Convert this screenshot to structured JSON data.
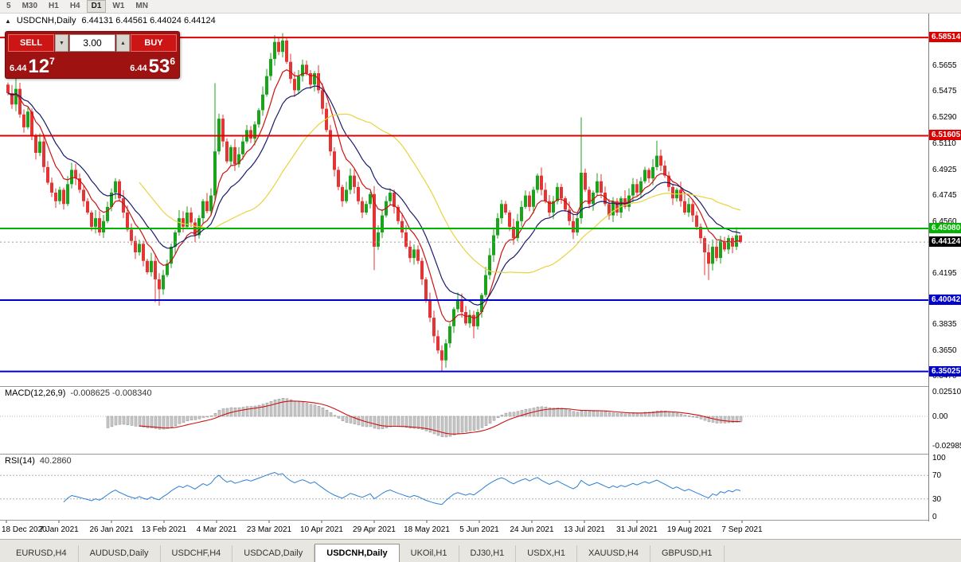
{
  "toolbar": {
    "periods": [
      "5",
      "M30",
      "H1",
      "H4",
      "D1",
      "W1",
      "MN"
    ],
    "active": "D1"
  },
  "header": {
    "collapse_glyph": "▲",
    "symbol": "USDCNH,Daily",
    "ohlc": "6.44131 6.44561 6.44024 6.44124"
  },
  "one_click": {
    "sell_label": "SELL",
    "buy_label": "BUY",
    "volume": "3.00",
    "spin_down_glyph": "▼",
    "spin_up_glyph": "▲",
    "sell_base": "6.44",
    "sell_pips": "12",
    "sell_point": "7",
    "buy_base": "6.44",
    "buy_pips": "53",
    "buy_point": "6"
  },
  "chart_data": {
    "type": "candlestick",
    "symbol": "USDCNH",
    "timeframe": "Daily",
    "current": {
      "open": "6.44131",
      "high": "6.44561",
      "low": "6.44024",
      "close": "6.44124"
    },
    "x_labels": [
      "18 Dec 2020",
      "7 Jan 2021",
      "26 Jan 2021",
      "13 Feb 2021",
      "4 Mar 2021",
      "23 Mar 2021",
      "10 Apr 2021",
      "29 Apr 2021",
      "18 May 2021",
      "5 Jun 2021",
      "24 Jun 2021",
      "13 Jul 2021",
      "31 Jul 2021",
      "19 Aug 2021",
      "7 Sep 2021"
    ],
    "first_open": 6.552,
    "closes": [
      6.546,
      6.538,
      6.549,
      6.531,
      6.522,
      6.533,
      6.516,
      6.504,
      6.512,
      6.494,
      6.483,
      6.476,
      6.47,
      6.478,
      6.468,
      6.482,
      6.492,
      6.486,
      6.478,
      6.47,
      6.462,
      6.452,
      6.458,
      6.448,
      6.456,
      6.466,
      6.476,
      6.484,
      6.472,
      6.462,
      6.45,
      6.442,
      6.434,
      6.44,
      6.428,
      6.42,
      6.428,
      6.415,
      6.408,
      6.418,
      6.426,
      6.438,
      6.448,
      6.458,
      6.452,
      6.462,
      6.455,
      6.446,
      6.458,
      6.47,
      6.463,
      6.474,
      6.505,
      6.528,
      6.512,
      6.498,
      6.508,
      6.496,
      6.503,
      6.512,
      6.52,
      6.514,
      6.524,
      6.534,
      6.545,
      6.558,
      6.57,
      6.582,
      6.575,
      6.583,
      6.568,
      6.556,
      6.548,
      6.558,
      6.566,
      6.56,
      6.552,
      6.56,
      6.548,
      6.535,
      6.52,
      6.505,
      6.492,
      6.48,
      6.47,
      6.478,
      6.488,
      6.48,
      6.47,
      6.462,
      6.468,
      6.475,
      6.438,
      6.448,
      6.46,
      6.47,
      6.476,
      6.466,
      6.456,
      6.448,
      6.438,
      6.43,
      6.436,
      6.428,
      6.415,
      6.4,
      6.388,
      6.375,
      6.365,
      6.358,
      6.37,
      6.382,
      6.394,
      6.4,
      6.392,
      6.384,
      6.39,
      6.382,
      6.392,
      6.404,
      6.418,
      6.432,
      6.446,
      6.458,
      6.468,
      6.462,
      6.452,
      6.444,
      6.456,
      6.466,
      6.474,
      6.466,
      6.478,
      6.488,
      6.478,
      6.47,
      6.462,
      6.47,
      6.48,
      6.472,
      6.464,
      6.456,
      6.448,
      6.458,
      6.49,
      6.478,
      6.468,
      6.476,
      6.484,
      6.476,
      6.468,
      6.46,
      6.47,
      6.462,
      6.472,
      6.466,
      6.474,
      6.482,
      6.476,
      6.484,
      6.492,
      6.486,
      6.494,
      6.502,
      6.495,
      6.488,
      6.48,
      6.472,
      6.478,
      6.47,
      6.462,
      6.468,
      6.46,
      6.452,
      6.444,
      6.434,
      6.426,
      6.438,
      6.43,
      6.442,
      6.436,
      6.444,
      6.438,
      6.446,
      6.44124
    ],
    "wick_overrides": {
      "2": {
        "h": 6.557
      },
      "37": {
        "l": 6.399
      },
      "38": {
        "l": 6.3965
      },
      "52": {
        "h": 6.553
      },
      "67": {
        "h": 6.5868
      },
      "69": {
        "h": 6.5882
      },
      "92": {
        "l": 6.4215
      },
      "109": {
        "l": 6.3505
      },
      "110": {
        "l": 6.3528
      },
      "117": {
        "l": 6.3735
      },
      "144": {
        "h": 6.529
      },
      "163": {
        "h": 6.5125
      },
      "175": {
        "l": 6.418
      },
      "176": {
        "l": 6.4145
      },
      "184": {
        "h": 6.4456,
        "l": 6.4402
      }
    },
    "up_color": "#1ca31c",
    "down_color": "#e43535",
    "price_axis_ticks": [
      "6.5655",
      "6.5475",
      "6.5290",
      "6.5110",
      "6.4925",
      "6.4745",
      "6.4560",
      "6.4195",
      "6.3835",
      "6.3650",
      "6.3470"
    ],
    "levels": [
      {
        "price": 6.58514,
        "label": "6.58514",
        "color": "#dd0000"
      },
      {
        "price": 6.51605,
        "label": "6.51605",
        "color": "#dd0000"
      },
      {
        "price": 6.4508,
        "label": "6.45080",
        "color": "#00b400"
      },
      {
        "price": 6.40042,
        "label": "6.40042",
        "color": "#0000cc"
      },
      {
        "price": 6.35025,
        "label": "6.35025",
        "color": "#0000cc"
      }
    ],
    "current_price_tag": {
      "price": 6.44124,
      "label": "6.44124",
      "color": "#000000"
    },
    "moving_averages": [
      {
        "period": 8,
        "type": "ema",
        "color": "#cc1111"
      },
      {
        "period": 16,
        "type": "ema",
        "color": "#1a1a6e"
      },
      {
        "period": 34,
        "type": "sma",
        "color": "#e8d43c"
      }
    ],
    "indicators": {
      "macd": {
        "label": "MACD(12,26,9)",
        "values_text": "-0.008625 -0.008340",
        "fast": 12,
        "slow": 26,
        "signal_period": 9,
        "axis_labels": [
          "0.02510",
          "0.00",
          "-0.02985"
        ],
        "hist_color": "#c9c9c9",
        "signal_color": "#cc1111"
      },
      "rsi": {
        "label": "RSI(14)",
        "value_text": "40.2860",
        "period": 14,
        "axis_labels": [
          "100",
          "70",
          "30",
          "0"
        ],
        "levels": [
          70,
          30
        ],
        "line_color": "#2a7fd4"
      }
    }
  },
  "tabs": {
    "items": [
      "EURUSD,H4",
      "AUDUSD,Daily",
      "USDCHF,H4",
      "USDCAD,Daily",
      "USDCNH,Daily",
      "UKOil,H1",
      "DJ30,H1",
      "USDX,H1",
      "XAUUSD,H4",
      "GBPUSD,H1"
    ],
    "active_index": 4
  }
}
